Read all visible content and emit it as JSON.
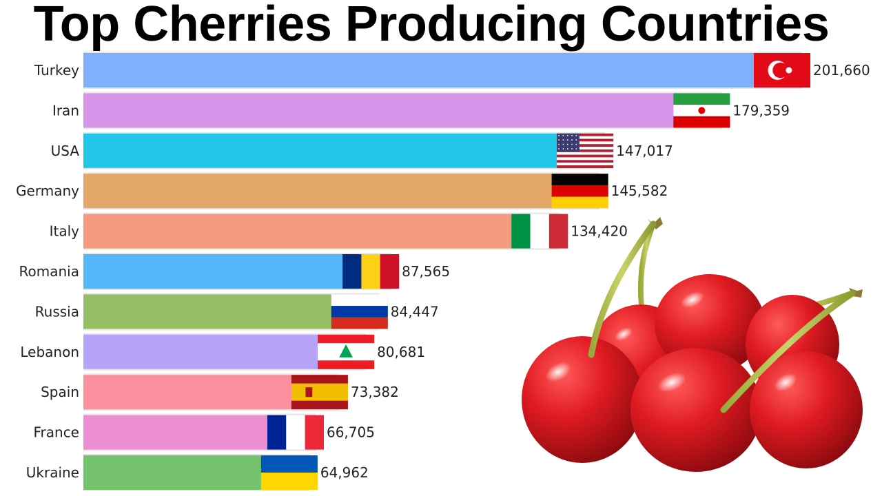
{
  "title": "Top Cherries Producing Countries",
  "chart_data": {
    "type": "bar",
    "orientation": "horizontal",
    "title": "Top Cherries Producing Countries",
    "categories": [
      "Turkey",
      "Iran",
      "USA",
      "Germany",
      "Italy",
      "Romania",
      "Russia",
      "Lebanon",
      "Spain",
      "France",
      "Ukraine"
    ],
    "values": [
      201660,
      179359,
      147017,
      145582,
      134420,
      87565,
      84447,
      80681,
      73382,
      66705,
      64962
    ],
    "value_labels": [
      "201,660",
      "179,359",
      "147,017",
      "145,582",
      "134,420",
      "87,565",
      "84,447",
      "80,681",
      "73,382",
      "66,705",
      "64,962"
    ],
    "colors": [
      "#7fb0fb",
      "#d894e8",
      "#20c5e7",
      "#e2a667",
      "#f49a7d",
      "#54b6fb",
      "#94bd64",
      "#b7a4f9",
      "#fb8f9d",
      "#ee8fd3",
      "#74c26c"
    ],
    "flags": [
      "turkey-flag",
      "iran-flag",
      "usa-flag",
      "germany-flag",
      "italy-flag",
      "romania-flag",
      "russia-flag",
      "lebanon-flag",
      "spain-flag",
      "france-flag",
      "ukraine-flag"
    ],
    "xlim": [
      0,
      201660
    ],
    "grid": false,
    "legend": "none"
  },
  "decoration": {
    "image": "cherries-illustration"
  }
}
